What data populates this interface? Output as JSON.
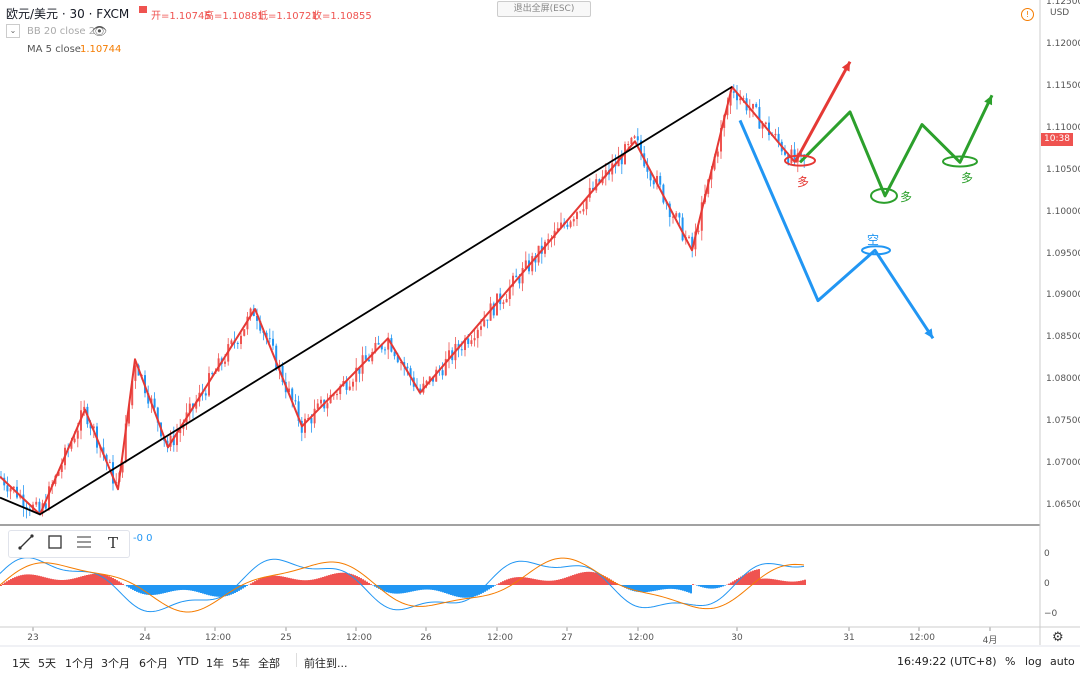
{
  "header": {
    "symbol": "欧元/美元 · 30 · FXCM",
    "open": "开=1.10745",
    "high": "高=1.10881",
    "low": "低=1.10721",
    "close": "收=1.10855",
    "bb_label": "BB 20 close 2",
    "ma_label": "MA 5 close",
    "ma_value": "1.10744",
    "exit_fullscreen": "退出全屏(ESC)"
  },
  "price_axis": {
    "currency": "USD",
    "ticks": [
      "1.12500",
      "1.12000",
      "1.11500",
      "1.11000",
      "1.10500",
      "1.10000",
      "1.09500",
      "1.09000",
      "1.08500",
      "1.08000",
      "1.07500",
      "1.07000",
      "1.06500"
    ],
    "current_label": "10:38"
  },
  "indicator_axis": {
    "ticks": [
      "0",
      "0",
      "−0"
    ],
    "values": "-0 0"
  },
  "time_axis": {
    "ticks": [
      "23",
      "24",
      "12:00",
      "25",
      "12:00",
      "26",
      "12:00",
      "27",
      "12:00",
      "30",
      "31",
      "12:00",
      "4月"
    ]
  },
  "annotations": {
    "long1": "多",
    "long2": "多",
    "long3": "多",
    "short": "空"
  },
  "bottom_bar": {
    "ranges": [
      "1天",
      "5天",
      "1个月",
      "3个月",
      "6个月",
      "YTD",
      "1年",
      "5年",
      "全部"
    ],
    "goto": "前往到...",
    "clock": "16:49:22 (UTC+8)",
    "percent": "%",
    "log": "log",
    "auto": "auto"
  },
  "colors": {
    "up": "#ef5350",
    "down": "#2196f3",
    "zigzag": "#e53935",
    "trend": "#000000",
    "green": "#2ca02c",
    "blue": "#2196f3",
    "ma": "#f57c00"
  },
  "chart_data": {
    "type": "line",
    "title": "欧元/美元 · 30 · FXCM",
    "xlabel": "",
    "ylabel": "",
    "ylim": [
      1.062,
      1.126
    ],
    "x_ticks": [
      "23",
      "24",
      "12:00",
      "25",
      "12:00",
      "26",
      "12:00",
      "27",
      "12:00",
      "30",
      "31",
      "12:00",
      "4月"
    ],
    "series": [
      {
        "values": [
          [
            0,
            1.0685
          ],
          [
            40,
            1.064
          ],
          [
            85,
            1.0765
          ],
          [
            118,
            1.067
          ],
          [
            135,
            1.0825
          ],
          [
            168,
            1.072
          ],
          [
            255,
            1.0885
          ],
          [
            302,
            1.0745
          ],
          [
            388,
            1.085
          ],
          [
            420,
            1.0785
          ],
          [
            635,
            1.1085
          ],
          [
            692,
            1.0955
          ],
          [
            732,
            1.115
          ],
          [
            795,
            1.106
          ]
        ]
      },
      {
        "values": [
          [
            0,
            1.066
          ],
          [
            40,
            1.064
          ],
          [
            732,
            1.115
          ]
        ]
      },
      {
        "values": [
          [
            795,
            1.106
          ],
          [
            850,
            1.118
          ]
        ]
      },
      {
        "values": [
          [
            800,
            1.106
          ],
          [
            850,
            1.112
          ],
          [
            885,
            1.102
          ],
          [
            922,
            1.1105
          ],
          [
            960,
            1.106
          ],
          [
            992,
            1.114
          ]
        ]
      },
      {
        "values": [
          [
            740,
            1.111
          ],
          [
            818,
            1.0895
          ],
          [
            875,
            1.0955
          ],
          [
            933,
            1.085
          ]
        ]
      }
    ]
  }
}
